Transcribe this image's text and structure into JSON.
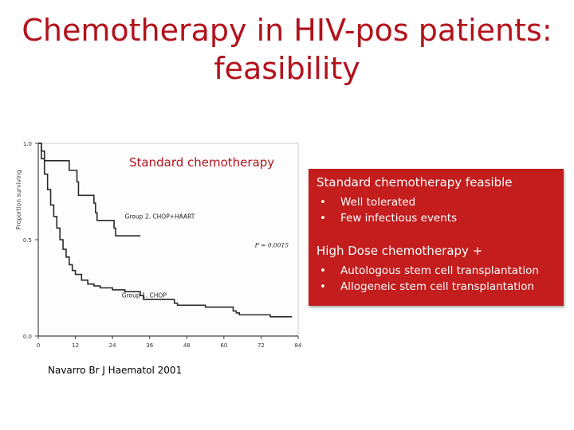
{
  "title_lines": [
    "Chemotherapy in HIV-pos patients:",
    "feasibility"
  ],
  "chart_label": "Standard chemotherapy",
  "citation": "Navarro Br J Haematol 2001",
  "callout": {
    "heading1": "Standard chemotherapy feasible",
    "items1": [
      "Well tolerated",
      "Few infectious events"
    ],
    "heading2": "High Dose chemotherapy +",
    "items2": [
      "Autologous stem cell transplantation",
      "Allogeneic stem cell transplantation"
    ],
    "bullet": "•",
    "background": "#c31d1d"
  },
  "chart_data": {
    "type": "line",
    "ylabel": "Proportion surviving",
    "ylim": [
      0.0,
      1.0
    ],
    "xlim": [
      0,
      84
    ],
    "x_ticks": [
      "0",
      "12",
      "24",
      "36",
      "48",
      "60",
      "72",
      "84"
    ],
    "x_tick_values": [
      0,
      12,
      24,
      36,
      48,
      60,
      72,
      84
    ],
    "y_ticks": [
      "0.0",
      "0.5",
      "1.0"
    ],
    "y_tick_values": [
      0.0,
      0.5,
      1.0
    ],
    "annotation": "P = 0.0015",
    "series": [
      {
        "name": "Group 2. CHOP+HAART",
        "step": true,
        "x": [
          0,
          1,
          2,
          8,
          10,
          12,
          12.5,
          13,
          16,
          18,
          18.5,
          19,
          24,
          24.5,
          25,
          32,
          33
        ],
        "y": [
          1.0,
          0.96,
          0.91,
          0.91,
          0.86,
          0.86,
          0.8,
          0.73,
          0.73,
          0.69,
          0.64,
          0.6,
          0.6,
          0.56,
          0.52,
          0.52,
          0.52
        ]
      },
      {
        "name": "Group 1. CHOP",
        "step": true,
        "x": [
          0,
          1,
          2,
          3,
          4,
          5,
          6,
          7,
          8,
          9,
          10,
          11,
          12,
          14,
          16,
          18,
          20,
          24,
          28,
          33,
          34,
          44,
          45,
          48,
          54,
          62,
          63,
          64,
          65,
          72,
          75,
          82
        ],
        "y": [
          1.0,
          0.92,
          0.84,
          0.76,
          0.68,
          0.62,
          0.56,
          0.5,
          0.45,
          0.41,
          0.37,
          0.34,
          0.32,
          0.29,
          0.27,
          0.26,
          0.25,
          0.24,
          0.23,
          0.21,
          0.19,
          0.17,
          0.16,
          0.16,
          0.15,
          0.15,
          0.13,
          0.12,
          0.11,
          0.11,
          0.1,
          0.1
        ]
      }
    ]
  }
}
